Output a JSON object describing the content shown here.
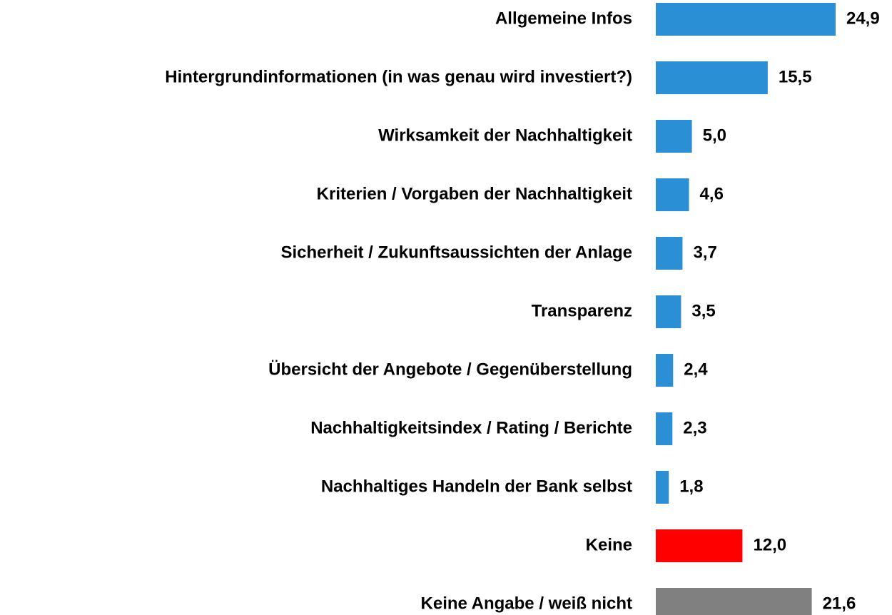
{
  "chart_data": {
    "type": "bar",
    "orientation": "horizontal",
    "categories": [
      "Allgemeine Infos",
      "Hintergrundinformationen (in was genau wird investiert?)",
      "Wirksamkeit der Nachhaltigkeit",
      "Kriterien / Vorgaben der Nachhaltigkeit",
      "Sicherheit / Zukunftsaussichten der Anlage",
      "Transparenz",
      "Übersicht der Angebote / Gegenüberstellung",
      "Nachhaltigkeitsindex / Rating / Berichte",
      "Nachhaltiges Handeln der Bank selbst",
      "Keine",
      "Keine Angabe / weiß nicht"
    ],
    "values": [
      24.9,
      15.5,
      5.0,
      4.6,
      3.7,
      3.5,
      2.4,
      2.3,
      1.8,
      12.0,
      21.6
    ],
    "value_labels": [
      "24,9",
      "15,5",
      "5,0",
      "4,6",
      "3,7",
      "3,5",
      "2,4",
      "2,3",
      "1,8",
      "12,0",
      "21,6"
    ],
    "colors": [
      "#2a8fd4",
      "#2a8fd4",
      "#2a8fd4",
      "#2a8fd4",
      "#2a8fd4",
      "#2a8fd4",
      "#2a8fd4",
      "#2a8fd4",
      "#2a8fd4",
      "#ff0000",
      "#808080"
    ]
  }
}
